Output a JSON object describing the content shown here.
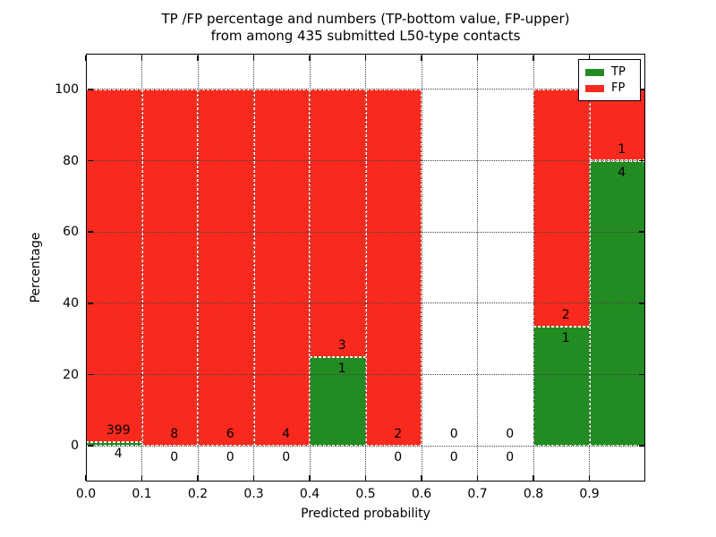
{
  "chart_data": {
    "type": "stacked_bar",
    "title": "TP /FP percentage and numbers (TP-bottom value, FP-upper)\nfrom among 435 submitted L50-type contacts",
    "title_lines": [
      "TP /FP percentage and numbers (TP-bottom value, FP-upper)",
      "from among 435 submitted L50-type contacts"
    ],
    "xlabel": "Predicted probability",
    "ylabel": "Percentage",
    "total_contacts": 435,
    "xlim": [
      0.0,
      1.0
    ],
    "ylim": [
      -10,
      110
    ],
    "grid": "dotted",
    "bar_edge_style": "white dashed",
    "xticks": [
      {
        "value": 0.0,
        "label": "0.0"
      },
      {
        "value": 0.1,
        "label": "0.1"
      },
      {
        "value": 0.2,
        "label": "0.2"
      },
      {
        "value": 0.3,
        "label": "0.3"
      },
      {
        "value": 0.4,
        "label": "0.4"
      },
      {
        "value": 0.5,
        "label": "0.5"
      },
      {
        "value": 0.6,
        "label": "0.6"
      },
      {
        "value": 0.7,
        "label": "0.7"
      },
      {
        "value": 0.8,
        "label": "0.8"
      },
      {
        "value": 0.9,
        "label": "0.9"
      }
    ],
    "yticks": [
      0,
      20,
      40,
      60,
      80,
      100
    ],
    "colors": {
      "tp": "#228b22",
      "fp": "#f92a1d"
    },
    "legend": {
      "position": "upper right",
      "items": [
        {
          "label": "TP",
          "color": "#228b22"
        },
        {
          "label": "FP",
          "color": "#f92a1d"
        }
      ]
    },
    "bins": [
      {
        "range": [
          0.0,
          0.1
        ],
        "tp": 4,
        "fp": 399,
        "tp_pct": 0.99,
        "fp_pct": 99.01
      },
      {
        "range": [
          0.1,
          0.2
        ],
        "tp": 0,
        "fp": 8,
        "tp_pct": 0,
        "fp_pct": 100
      },
      {
        "range": [
          0.2,
          0.3
        ],
        "tp": 0,
        "fp": 6,
        "tp_pct": 0,
        "fp_pct": 100
      },
      {
        "range": [
          0.3,
          0.4
        ],
        "tp": 0,
        "fp": 4,
        "tp_pct": 0,
        "fp_pct": 100
      },
      {
        "range": [
          0.4,
          0.5
        ],
        "tp": 1,
        "fp": 3,
        "tp_pct": 25,
        "fp_pct": 75
      },
      {
        "range": [
          0.5,
          0.6
        ],
        "tp": 0,
        "fp": 2,
        "tp_pct": 0,
        "fp_pct": 100
      },
      {
        "range": [
          0.6,
          0.7
        ],
        "tp": 0,
        "fp": 0,
        "tp_pct": 0,
        "fp_pct": 0
      },
      {
        "range": [
          0.7,
          0.8
        ],
        "tp": 0,
        "fp": 0,
        "tp_pct": 0,
        "fp_pct": 0
      },
      {
        "range": [
          0.8,
          0.9
        ],
        "tp": 1,
        "fp": 2,
        "tp_pct": 33.33,
        "fp_pct": 66.67
      },
      {
        "range": [
          0.9,
          1.0
        ],
        "tp": 4,
        "fp": 1,
        "tp_pct": 80,
        "fp_pct": 20
      }
    ]
  }
}
